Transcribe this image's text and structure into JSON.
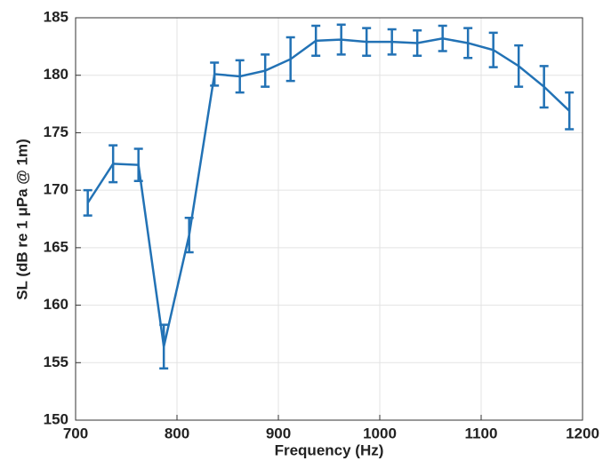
{
  "chart_data": {
    "type": "line",
    "xlabel": "Frequency (Hz)",
    "ylabel": "SL (dB re 1 μPa @ 1m)",
    "x": [
      712,
      737,
      762,
      787,
      812,
      837,
      862,
      887,
      912,
      937,
      962,
      987,
      1012,
      1037,
      1062,
      1087,
      1112,
      1137,
      1162,
      1187
    ],
    "series": [
      {
        "color": "#2272b5",
        "values": [
          168.9,
          172.3,
          172.2,
          156.4,
          166.1,
          180.1,
          179.9,
          180.4,
          181.4,
          183.0,
          183.1,
          182.9,
          182.9,
          182.8,
          183.2,
          182.8,
          182.2,
          180.8,
          179.0,
          176.9
        ],
        "errors": [
          1.1,
          1.6,
          1.4,
          1.9,
          1.5,
          1.0,
          1.4,
          1.4,
          1.9,
          1.3,
          1.3,
          1.2,
          1.1,
          1.1,
          1.1,
          1.3,
          1.5,
          1.8,
          1.8,
          1.6
        ]
      }
    ],
    "xlim": [
      700,
      1200
    ],
    "xticks": [
      700,
      800,
      900,
      1000,
      1100,
      1200
    ],
    "ylim": [
      150,
      185
    ],
    "yticks": [
      150,
      155,
      160,
      165,
      170,
      175,
      180,
      185
    ],
    "grid": true
  }
}
